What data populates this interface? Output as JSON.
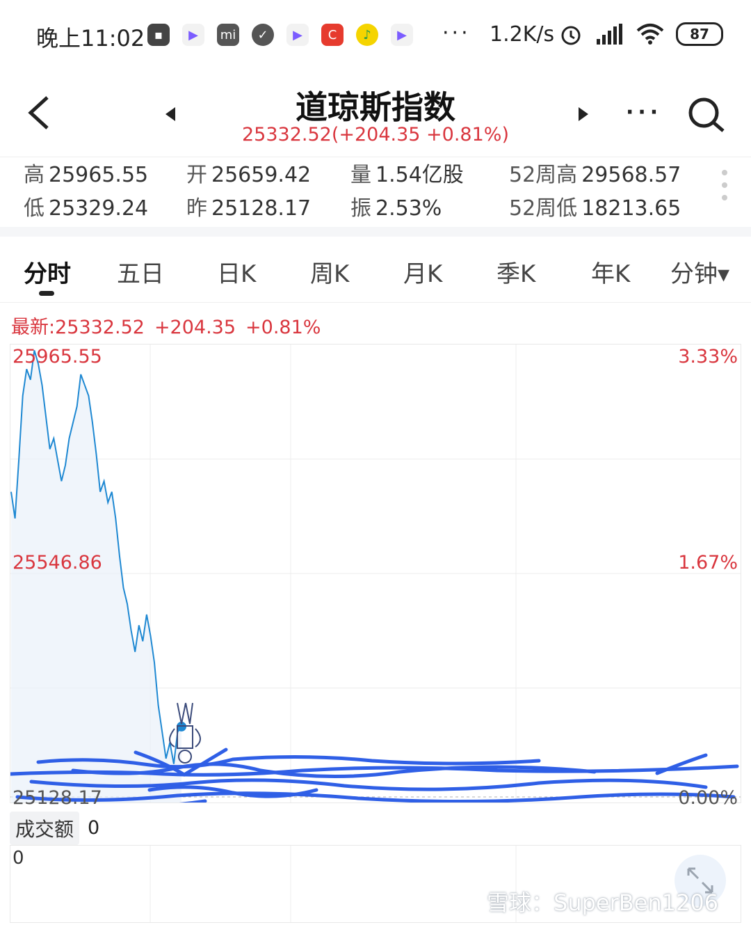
{
  "status_bar": {
    "time": "晚上11:02",
    "network_speed": "1.2K/s",
    "battery": "87",
    "overflow": "···",
    "app_icons": [
      "message-icon",
      "video-play-icon",
      "mi-store-icon",
      "check-circle-icon",
      "video-play-icon",
      "618-app-icon",
      "music-icon",
      "video-play-icon"
    ]
  },
  "header": {
    "title": "道琼斯指数",
    "subtitle": "25332.52(+204.35 +0.81%)",
    "more": "···"
  },
  "stats": {
    "high": {
      "label": "高",
      "value": "25965.55"
    },
    "open": {
      "label": "开",
      "value": "25659.42"
    },
    "volume": {
      "label": "量",
      "value": "1.54亿股"
    },
    "w52_high": {
      "label": "52周高",
      "value": "29568.57"
    },
    "low": {
      "label": "低",
      "value": "25329.24"
    },
    "prev_close": {
      "label": "昨",
      "value": "25128.17"
    },
    "amplitude": {
      "label": "振",
      "value": "2.53%"
    },
    "w52_low": {
      "label": "52周低",
      "value": "18213.65"
    }
  },
  "tabs": [
    "分时",
    "五日",
    "日K",
    "周K",
    "月K",
    "季K",
    "年K",
    "分钟▾"
  ],
  "quote": {
    "latest": "最新:25332.52",
    "change": "+204.35",
    "change_pct": "+0.81%"
  },
  "chart_data": {
    "type": "line",
    "y_axis_labels_left": [
      "25965.55",
      "25546.86",
      "25128.17"
    ],
    "y_axis_labels_right": [
      "3.33%",
      "1.67%",
      "0.00%"
    ],
    "ylim": [
      25128.17,
      25965.55
    ],
    "series": [
      {
        "values": [
          25700,
          25650,
          25760,
          25880,
          25930,
          25910,
          25965,
          25940,
          25900,
          25840,
          25780,
          25800,
          25760,
          25720,
          25750,
          25800,
          25830,
          25860,
          25920,
          25900,
          25880,
          25830,
          25770,
          25700,
          25720,
          25680,
          25700,
          25650,
          25580,
          25520,
          25490,
          25440,
          25400,
          25450,
          25420,
          25470,
          25430,
          25380,
          25300,
          25250,
          25200,
          25230,
          25190,
          25250,
          25260
        ],
        "color": "#1e88d2"
      }
    ]
  },
  "volume_panel": {
    "label": "成交额",
    "value": "0",
    "axis_zero": "0"
  },
  "watermark": "雪球：SuperBen1206"
}
